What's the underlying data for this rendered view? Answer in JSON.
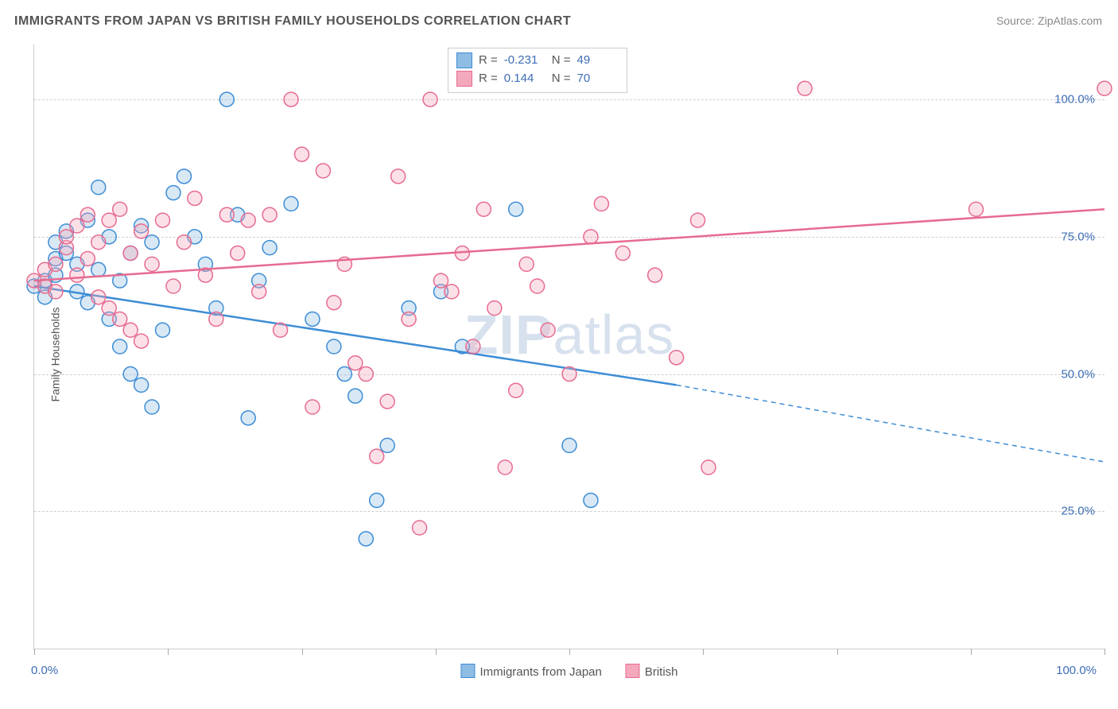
{
  "title": "IMMIGRANTS FROM JAPAN VS BRITISH FAMILY HOUSEHOLDS CORRELATION CHART",
  "source": "Source: ZipAtlas.com",
  "watermark_bold": "ZIP",
  "watermark_light": "atlas",
  "ylabel": "Family Households",
  "chart": {
    "type": "scatter",
    "xlim": [
      0,
      100
    ],
    "ylim": [
      0,
      110
    ],
    "xtick_positions": [
      0,
      12.5,
      25,
      37.5,
      50,
      62.5,
      75,
      87.5,
      100
    ],
    "x_label_min": "0.0%",
    "x_label_max": "100.0%",
    "ytick_grid": [
      25,
      50,
      75,
      100
    ],
    "ytick_labels": [
      "25.0%",
      "50.0%",
      "75.0%",
      "100.0%"
    ],
    "background_color": "#ffffff",
    "grid_color": "#d0d0d0",
    "axis_color": "#cccccc",
    "marker_radius": 9,
    "marker_stroke_width": 1.5,
    "marker_fill_opacity": 0.35,
    "trend_line_width": 2.5,
    "series": [
      {
        "name": "Immigrants from Japan",
        "label": "Immigrants from Japan",
        "color_fill": "#8fbce2",
        "color_stroke": "#3d8dd6",
        "r_value": "-0.231",
        "n_value": "49",
        "trend": {
          "start": [
            0,
            66
          ],
          "solid_end": [
            60,
            48
          ],
          "dash_end": [
            100,
            34
          ]
        },
        "points": [
          [
            0,
            66
          ],
          [
            1,
            67
          ],
          [
            1,
            64
          ],
          [
            2,
            68
          ],
          [
            2,
            71
          ],
          [
            2,
            74
          ],
          [
            3,
            76
          ],
          [
            3,
            72
          ],
          [
            4,
            70
          ],
          [
            4,
            65
          ],
          [
            5,
            78
          ],
          [
            5,
            63
          ],
          [
            6,
            69
          ],
          [
            6,
            84
          ],
          [
            7,
            75
          ],
          [
            7,
            60
          ],
          [
            8,
            67
          ],
          [
            8,
            55
          ],
          [
            9,
            72
          ],
          [
            9,
            50
          ],
          [
            10,
            77
          ],
          [
            10,
            48
          ],
          [
            11,
            74
          ],
          [
            11,
            44
          ],
          [
            12,
            58
          ],
          [
            13,
            83
          ],
          [
            14,
            86
          ],
          [
            15,
            75
          ],
          [
            16,
            70
          ],
          [
            17,
            62
          ],
          [
            18,
            100
          ],
          [
            19,
            79
          ],
          [
            20,
            42
          ],
          [
            21,
            67
          ],
          [
            22,
            73
          ],
          [
            24,
            81
          ],
          [
            26,
            60
          ],
          [
            28,
            55
          ],
          [
            29,
            50
          ],
          [
            30,
            46
          ],
          [
            31,
            20
          ],
          [
            32,
            27
          ],
          [
            33,
            37
          ],
          [
            35,
            62
          ],
          [
            38,
            65
          ],
          [
            40,
            55
          ],
          [
            45,
            80
          ],
          [
            50,
            37
          ],
          [
            52,
            27
          ]
        ]
      },
      {
        "name": "British",
        "label": "British",
        "color_fill": "#f4a8bb",
        "color_stroke": "#e76b91",
        "r_value": "0.144",
        "n_value": "70",
        "trend": {
          "start": [
            0,
            67
          ],
          "solid_end": [
            100,
            80
          ],
          "dash_end": null
        },
        "points": [
          [
            0,
            67
          ],
          [
            1,
            66
          ],
          [
            1,
            69
          ],
          [
            2,
            70
          ],
          [
            2,
            65
          ],
          [
            3,
            73
          ],
          [
            3,
            75
          ],
          [
            4,
            68
          ],
          [
            4,
            77
          ],
          [
            5,
            71
          ],
          [
            5,
            79
          ],
          [
            6,
            74
          ],
          [
            6,
            64
          ],
          [
            7,
            78
          ],
          [
            7,
            62
          ],
          [
            8,
            80
          ],
          [
            8,
            60
          ],
          [
            9,
            72
          ],
          [
            9,
            58
          ],
          [
            10,
            76
          ],
          [
            10,
            56
          ],
          [
            11,
            70
          ],
          [
            12,
            78
          ],
          [
            13,
            66
          ],
          [
            14,
            74
          ],
          [
            15,
            82
          ],
          [
            16,
            68
          ],
          [
            17,
            60
          ],
          [
            18,
            79
          ],
          [
            19,
            72
          ],
          [
            20,
            78
          ],
          [
            21,
            65
          ],
          [
            22,
            79
          ],
          [
            23,
            58
          ],
          [
            24,
            100
          ],
          [
            25,
            90
          ],
          [
            26,
            44
          ],
          [
            27,
            87
          ],
          [
            28,
            63
          ],
          [
            29,
            70
          ],
          [
            30,
            52
          ],
          [
            31,
            50
          ],
          [
            32,
            35
          ],
          [
            33,
            45
          ],
          [
            34,
            86
          ],
          [
            35,
            60
          ],
          [
            36,
            22
          ],
          [
            37,
            100
          ],
          [
            38,
            67
          ],
          [
            39,
            65
          ],
          [
            40,
            72
          ],
          [
            41,
            55
          ],
          [
            42,
            80
          ],
          [
            43,
            62
          ],
          [
            44,
            33
          ],
          [
            45,
            47
          ],
          [
            46,
            70
          ],
          [
            47,
            66
          ],
          [
            48,
            58
          ],
          [
            50,
            50
          ],
          [
            52,
            75
          ],
          [
            53,
            81
          ],
          [
            55,
            72
          ],
          [
            58,
            68
          ],
          [
            60,
            53
          ],
          [
            62,
            78
          ],
          [
            63,
            33
          ],
          [
            72,
            102
          ],
          [
            88,
            80
          ],
          [
            100,
            102
          ]
        ]
      }
    ]
  }
}
